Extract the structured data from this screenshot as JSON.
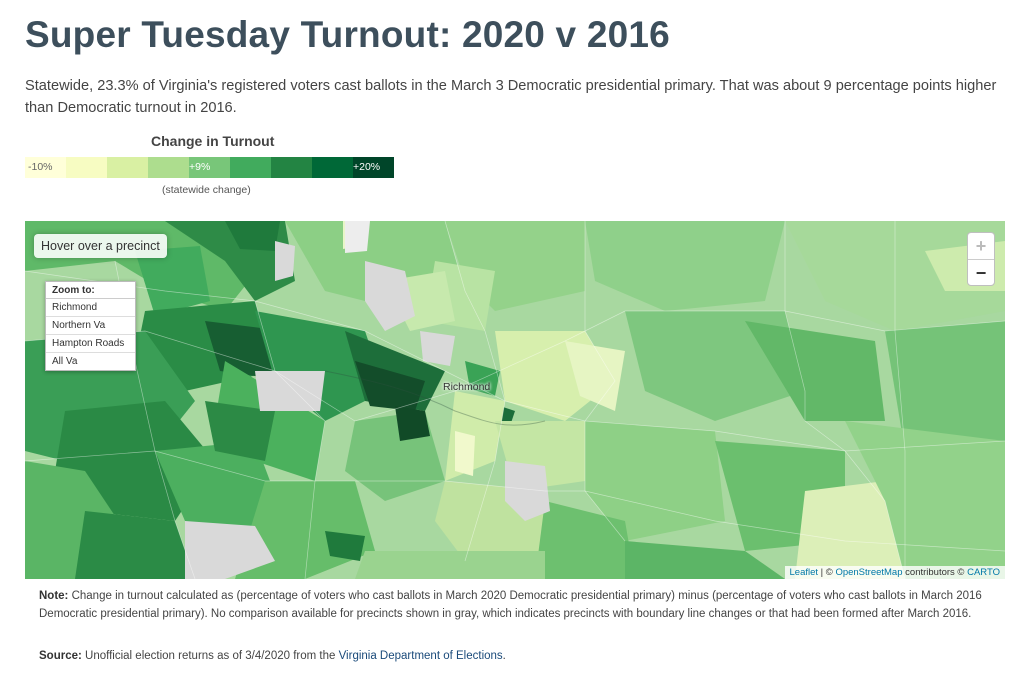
{
  "header": {
    "title": "Super Tuesday Turnout: 2020 v 2016",
    "subtitle": "Statewide, 23.3% of Virginia's registered voters cast ballots in the March 3 Democratic presidential primary. That was about 9 percentage points higher than Democratic turnout in 2016."
  },
  "legend": {
    "title": "Change in Turnout",
    "low_label": "-10%",
    "mid_label": "+9%",
    "high_label": "+20%",
    "note": "(statewide change)",
    "colors": [
      "#ffffd9",
      "#f7fcc2",
      "#d9f0a3",
      "#addd8e",
      "#78c679",
      "#41ab5d",
      "#238443",
      "#006837",
      "#004529"
    ]
  },
  "map": {
    "hover_prompt": "Hover over a precinct",
    "city_label": "Richmond",
    "no_data_color": "#d9d9d9",
    "zoom_to": {
      "header": "Zoom to:",
      "items": [
        "Richmond",
        "Northern Va",
        "Hampton Roads",
        "All Va"
      ]
    },
    "zoom_in": "+",
    "zoom_out": "−",
    "attribution": {
      "leaflet": "Leaflet",
      "sep1": " | © ",
      "osm": "OpenStreetMap",
      "contrib": " contributors © ",
      "carto": "CARTO"
    }
  },
  "note": {
    "label": "Note:",
    "text": " Change in turnout calculated as (percentage of voters who cast ballots in March 2020 Democratic presidential primary) minus (percentage of voters who cast ballots in March 2016 Democratic presidential primary). No comparison available for precincts shown in gray, which indicates precincts with boundary line changes or that had been formed after March 2016."
  },
  "source": {
    "label": "Source:",
    "text": " Unofficial election returns as of 3/4/2020 from the ",
    "link": "Virginia Department of Elections",
    "end": "."
  }
}
